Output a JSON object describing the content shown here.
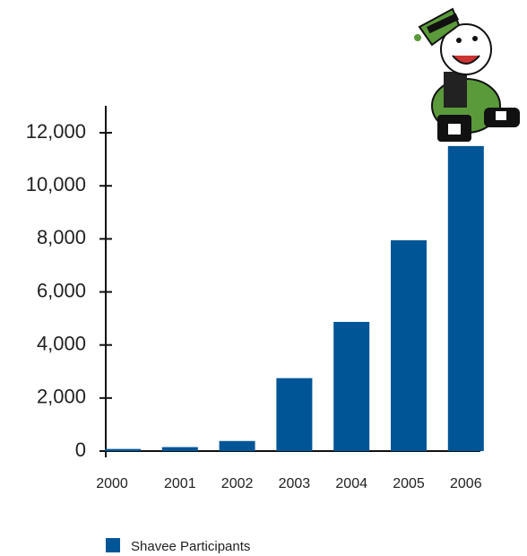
{
  "chart_data": {
    "type": "bar",
    "categories": [
      "2000",
      "2001",
      "2002",
      "2003",
      "2004",
      "2005",
      "2006"
    ],
    "series": [
      {
        "name": "Shavee Participants",
        "color": "#005596",
        "values": [
          80,
          150,
          380,
          2750,
          4870,
          7950,
          11500
        ]
      }
    ],
    "ylim": [
      0,
      13000
    ],
    "yticks": [
      0,
      {
        "value": 2000,
        "label": "2,000"
      },
      {
        "value": 4000,
        "label": "4,000"
      },
      {
        "value": 6000,
        "label": "6,000"
      },
      {
        "value": 8000,
        "label": "8,000"
      },
      {
        "value": 10000,
        "label": "10,000"
      },
      {
        "value": 12000,
        "label": "12,000"
      }
    ],
    "grid": false
  }
}
